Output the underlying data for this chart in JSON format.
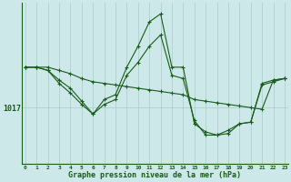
{
  "background_color": "#cce8e8",
  "line_color": "#1a5c1a",
  "grid_color": "#aacccc",
  "xlabel": "Graphe pression niveau de la mer (hPa)",
  "x_ticks": [
    0,
    1,
    2,
    3,
    4,
    5,
    6,
    7,
    8,
    9,
    10,
    11,
    12,
    13,
    14,
    15,
    16,
    17,
    18,
    19,
    20,
    21,
    22,
    23
  ],
  "series": [
    [
      1019.5,
      1019.5,
      1019.3,
      1018.7,
      1018.2,
      1017.4,
      1016.6,
      1017.5,
      1017.8,
      1019.5,
      1020.8,
      1022.3,
      1022.8,
      1019.5,
      1019.5,
      1016.0,
      1015.5,
      1015.3,
      1015.4,
      1016.0,
      1016.1,
      1018.5,
      1018.7,
      1018.8
    ],
    [
      1019.5,
      1019.5,
      1019.5,
      1019.3,
      1019.1,
      1018.8,
      1018.6,
      1018.5,
      1018.4,
      1018.3,
      1018.2,
      1018.1,
      1018.0,
      1017.9,
      1017.8,
      1017.5,
      1017.4,
      1017.3,
      1017.2,
      1017.1,
      1017.0,
      1016.9,
      1018.7,
      1018.8
    ],
    [
      1019.5,
      1019.5,
      1019.3,
      1018.5,
      1017.9,
      1017.2,
      1016.6,
      1017.2,
      1017.5,
      1019.0,
      1019.8,
      1020.8,
      1021.5,
      1019.0,
      1018.8,
      1016.2,
      1015.3,
      1015.3,
      1015.6,
      1016.0,
      1016.1,
      1018.4,
      1018.6,
      1018.8
    ]
  ],
  "ylim": [
    1013.5,
    1023.5
  ],
  "ytick_val": 1017,
  "figsize": [
    3.2,
    2.0
  ],
  "dpi": 100
}
